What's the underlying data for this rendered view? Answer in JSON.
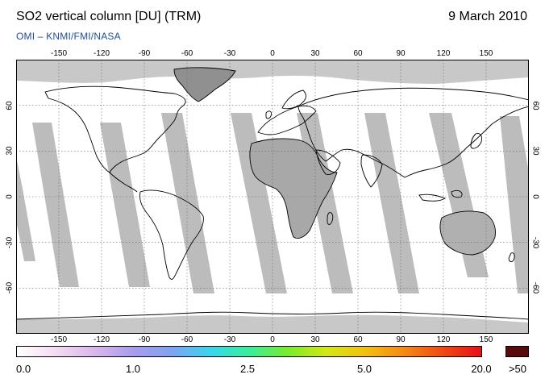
{
  "title": "SO2 vertical column [DU] (TRM)",
  "date": "9 March 2010",
  "credit": "OMI  –  KNMI/FMI/NASA",
  "longitude_ticks": [
    "-150",
    "-120",
    "-90",
    "-60",
    "-30",
    "0",
    "30",
    "60",
    "90",
    "120",
    "150"
  ],
  "latitude_ticks": [
    "60",
    "30",
    "0",
    "-30",
    "-60"
  ],
  "colorbar": {
    "labels": [
      "0.0",
      "1.0",
      "2.5",
      "5.0",
      "20.0",
      ">50"
    ],
    "colors": [
      "#ffffff",
      "#f4dcf2",
      "#dcb6ec",
      "#a99cec",
      "#7ea3f2",
      "#38d6ee",
      "#38ee9e",
      "#78ec2c",
      "#d4e812",
      "#f2c011",
      "#f68a14",
      "#ef4a14",
      "#e8101a"
    ],
    "overflow_color": "#5a0a0a"
  },
  "map_colors": {
    "no_data": "#c8c8c8",
    "swath_gap": "#bcbcbc",
    "background": "#ffffff",
    "coastline": "#000000"
  }
}
